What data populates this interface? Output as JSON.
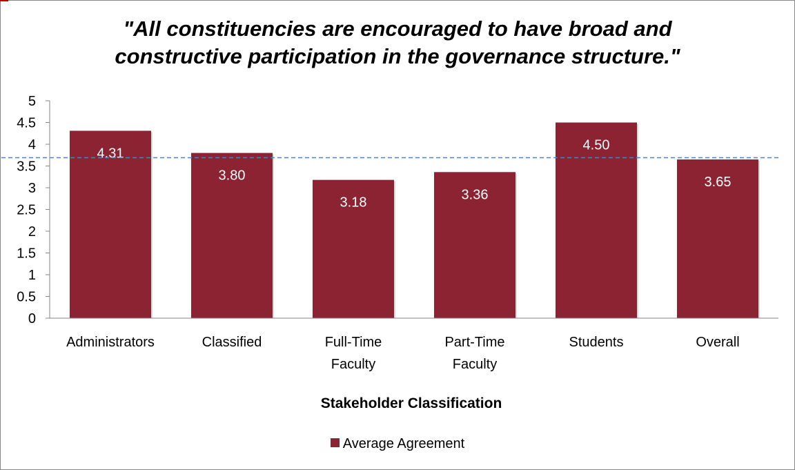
{
  "chart_data": {
    "type": "bar",
    "title_lines": [
      "\"All constituencies are encouraged to have broad and",
      "constructive participation in the governance structure.\""
    ],
    "xlabel": "Stakeholder Classification",
    "ylabel": "",
    "categories": [
      [
        "Administrators"
      ],
      [
        "Classified"
      ],
      [
        "Full-Time",
        "Faculty"
      ],
      [
        "Part-Time",
        "Faculty"
      ],
      [
        "Students"
      ],
      [
        "Overall"
      ]
    ],
    "series": [
      {
        "name": "Average Agreement",
        "values": [
          4.31,
          3.8,
          3.18,
          3.36,
          4.5,
          3.65
        ],
        "labels": [
          "4.31",
          "3.80",
          "3.18",
          "3.36",
          "4.50",
          "3.65"
        ],
        "color": "#8b2332"
      }
    ],
    "reference_line": {
      "value": 3.69,
      "style": "dashed",
      "color": "#4f81bd"
    },
    "ylim": [
      0,
      5
    ],
    "yticks": [
      "0",
      "0.5",
      "1",
      "1.5",
      "2",
      "2.5",
      "3",
      "3.5",
      "4",
      "4.5",
      "5"
    ],
    "grid": false,
    "legend_position": "bottom"
  }
}
